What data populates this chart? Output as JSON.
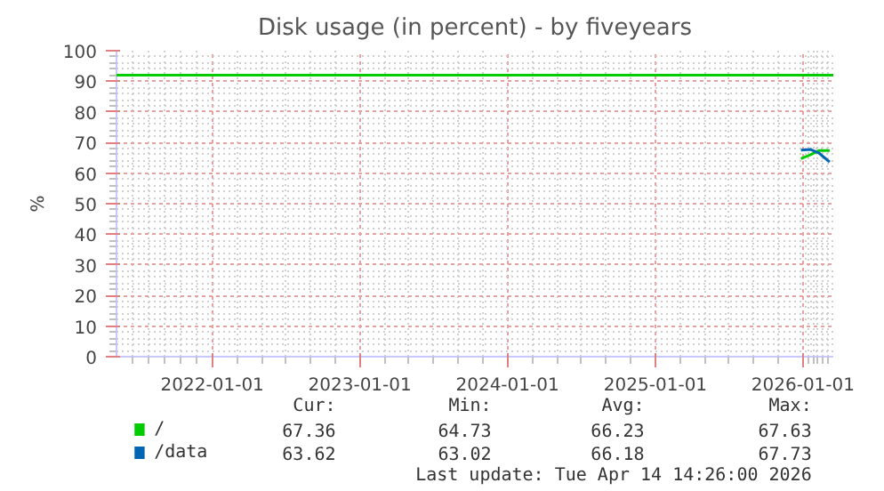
{
  "chart_data": {
    "type": "line",
    "title": "Disk usage (in percent) - by fiveyears",
    "ylabel": "%",
    "xlim": [
      "2021-05-09",
      "2026-03-17"
    ],
    "xticks": [
      "2022-01-01",
      "2023-01-01",
      "2024-01-01",
      "2025-01-01",
      "2026-01-01"
    ],
    "ylim": [
      0,
      100
    ],
    "yticks": [
      0,
      10,
      20,
      30,
      40,
      50,
      60,
      70,
      80,
      90,
      100
    ],
    "series": [
      {
        "name": "/",
        "color": "#00cc00",
        "x": [
          "2025-12-27",
          "2026-01-20",
          "2026-02-10",
          "2026-03-08"
        ],
        "values": [
          64.73,
          66.0,
          67.4,
          67.36
        ]
      },
      {
        "name": "/data",
        "color": "#0066b3",
        "x": [
          "2025-12-27",
          "2026-01-20",
          "2026-02-10",
          "2026-03-08"
        ],
        "values": [
          67.5,
          67.73,
          66.5,
          63.62
        ]
      }
    ],
    "ref_lines": [
      {
        "axis": "y",
        "value": 92,
        "color": "#00cc00"
      }
    ],
    "annotations": [
      "Cur:",
      "Min:",
      "Avg:",
      "Max:",
      "67.36",
      "64.73",
      "66.23",
      "67.63",
      "63.62",
      "63.02",
      "66.18",
      "67.73",
      "Last update: Tue Apr 14 14:26:00 2026"
    ],
    "grid": true,
    "legend": "bottom"
  }
}
